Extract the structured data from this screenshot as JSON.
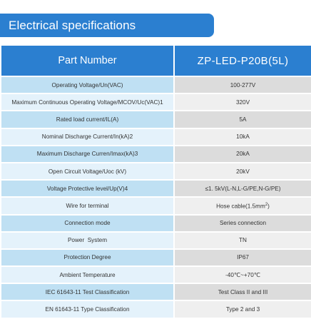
{
  "title": "Electrical specifications",
  "table": {
    "header": {
      "label": "Part Number",
      "value": "ZP-LED-P20B(5L)"
    },
    "rows": [
      {
        "label": "Operating Voltage/Un(VAC)",
        "value": "100-277V"
      },
      {
        "label": "Maximum Continuous Operating Voltage/MCOV/Uc(VAC)1",
        "value": "320V"
      },
      {
        "label": "Rated load current/IL(A)",
        "value": "5A"
      },
      {
        "label": "Nominal Discharge Current/In(kA)2",
        "value": "10kA"
      },
      {
        "label": "Maximum Discharge Curren/Imax(kA)3",
        "value": "20kA"
      },
      {
        "label": "Open Circuit Voltage/Uoc (kV)",
        "value": "20kV"
      },
      {
        "label": "Voltage Protective level/Up(V)4",
        "value": "≤1. 5kV(L-N,L-G/PE,N-G/PE)"
      },
      {
        "label": "Wire for terminal",
        "value": "Hose cable(1.5mm",
        "value_sup": "2",
        "value_suffix": ")"
      },
      {
        "label": "Connection mode",
        "value": "Series connection"
      },
      {
        "label": "Power  System",
        "value": "TN"
      },
      {
        "label": "Protection Degree",
        "value": "IP67"
      },
      {
        "label": "Ambient Temperature",
        "value": "-40℃~+70℃"
      },
      {
        "label": "IEC 61643-11 Test Classification",
        "value": "Test Class II and III"
      },
      {
        "label": "EN 61643-11 Type Classification",
        "value": "Type 2 and 3"
      }
    ]
  },
  "colors": {
    "accent": "#2b7fd0",
    "label_band_dark": "#bfe0f3",
    "label_band_light": "#e4f2fb",
    "value_band_dark": "#dcdcdc",
    "value_band_light": "#efefef"
  }
}
